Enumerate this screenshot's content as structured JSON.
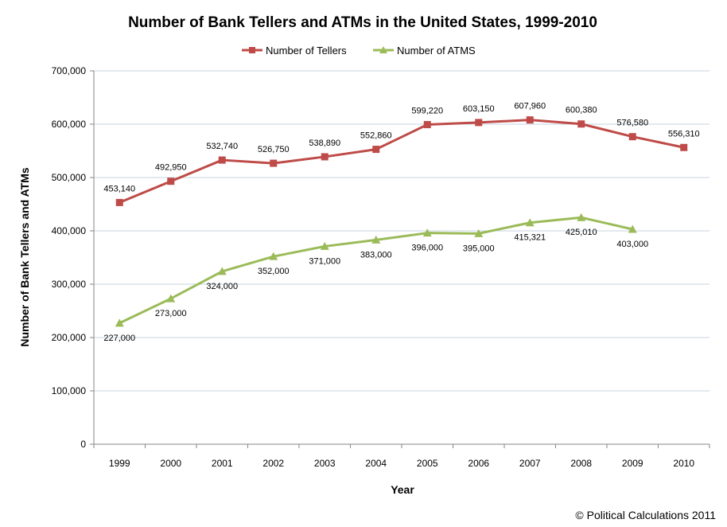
{
  "chart_data": {
    "type": "line",
    "title": "Number of Bank Tellers and ATMs in the United States, 1999-2010",
    "xlabel": "Year",
    "ylabel": "Number of Bank Tellers and ATMs",
    "ylim": [
      0,
      700000
    ],
    "yticks": [
      "0",
      "100,000",
      "200,000",
      "300,000",
      "400,000",
      "500,000",
      "600,000",
      "700,000"
    ],
    "categories": [
      "1999",
      "2000",
      "2001",
      "2002",
      "2003",
      "2004",
      "2005",
      "2006",
      "2007",
      "2008",
      "2009",
      "2010"
    ],
    "grid": "horizontal",
    "legend_position": "top-center",
    "series": [
      {
        "name": "Number of Tellers",
        "color": "#be4b48",
        "marker": "square",
        "values": [
          453140,
          492950,
          532740,
          526750,
          538890,
          552860,
          599220,
          603150,
          607960,
          600380,
          576580,
          556310
        ],
        "labels": [
          "453,140",
          "492,950",
          "532,740",
          "526,750",
          "538,890",
          "552,860",
          "599,220",
          "603,150",
          "607,960",
          "600,380",
          "576,580",
          "556,310"
        ]
      },
      {
        "name": "Number of ATMS",
        "color": "#9bbb59",
        "marker": "triangle",
        "values": [
          227000,
          273000,
          324000,
          352000,
          371000,
          383000,
          396000,
          395000,
          415321,
          425010,
          403000,
          null
        ],
        "labels": [
          "227,000",
          "273,000",
          "324,000",
          "352,000",
          "371,000",
          "383,000",
          "396,000",
          "395,000",
          "415,321",
          "425,010",
          "403,000",
          null
        ]
      }
    ]
  },
  "credit": "© Political Calculations 2011"
}
